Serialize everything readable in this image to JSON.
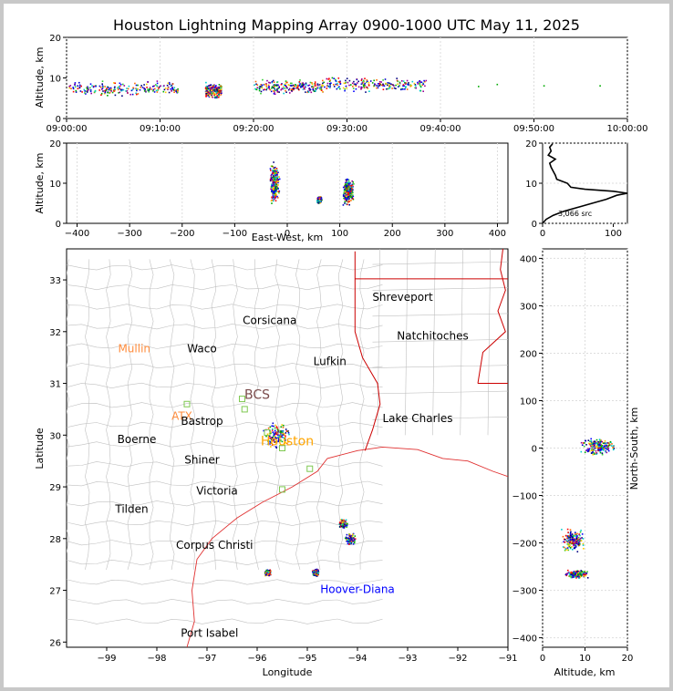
{
  "title": "Houston Lightning Mapping Array 0900-1000 UTC May 11, 2025",
  "chart_data": [
    {
      "type": "scatter",
      "ylabel": "Altitude, km",
      "xticks": [
        "09:00:00",
        "09:10:00",
        "09:20:00",
        "09:30:00",
        "09:40:00",
        "09:50:00",
        "10:00:00"
      ],
      "xlim": [
        "09:00:00",
        "10:00:00"
      ],
      "ylim": [
        0,
        20
      ],
      "yticks": [
        "0",
        "10",
        "20"
      ],
      "clusters": [
        {
          "t0": 0.2,
          "t1": 12.0,
          "alt": 7.5
        },
        {
          "t0": 14.8,
          "t1": 16.5,
          "alt": 7.0
        },
        {
          "t0": 20.0,
          "t1": 27.5,
          "alt": 8.0
        },
        {
          "t0": 27.5,
          "t1": 38.5,
          "alt": 8.5
        }
      ]
    },
    {
      "type": "scatter",
      "xlabel": "East-West, km",
      "ylabel": "Altitude, km",
      "xlim": [
        -420,
        420
      ],
      "ylim": [
        0,
        20
      ],
      "xticks": [
        "−400",
        "−300",
        "−200",
        "−100",
        "0",
        "100",
        "200",
        "300",
        "400"
      ],
      "yticks": [
        "0",
        "10",
        "20"
      ],
      "clusters": [
        {
          "x": -25,
          "alt": 10,
          "spread_x": 10,
          "spread_alt": 6
        },
        {
          "x": 60,
          "alt": 6,
          "spread_x": 5,
          "spread_alt": 1
        },
        {
          "x": 115,
          "alt": 8,
          "spread_x": 12,
          "spread_alt": 4
        }
      ]
    },
    {
      "type": "line",
      "annotation": "3,066 src",
      "xlim": [
        0,
        120
      ],
      "ylim": [
        0,
        20
      ],
      "xticks": [
        "0",
        "100"
      ],
      "yticks": [
        "0",
        "10",
        "20"
      ],
      "profile": [
        [
          0,
          0
        ],
        [
          5,
          1
        ],
        [
          15,
          2
        ],
        [
          30,
          3
        ],
        [
          50,
          4
        ],
        [
          70,
          5
        ],
        [
          90,
          6
        ],
        [
          105,
          7
        ],
        [
          120,
          7.5
        ],
        [
          100,
          8
        ],
        [
          60,
          8.5
        ],
        [
          40,
          9
        ],
        [
          35,
          10
        ],
        [
          20,
          11
        ],
        [
          18,
          12
        ],
        [
          15,
          13
        ],
        [
          12,
          14
        ],
        [
          10,
          15
        ],
        [
          18,
          16
        ],
        [
          8,
          17
        ],
        [
          12,
          18
        ],
        [
          10,
          19
        ],
        [
          14,
          19.8
        ]
      ]
    },
    {
      "type": "map",
      "xlabel": "Longitude",
      "ylabel": "Latitude",
      "xlim": [
        -99.8,
        -91
      ],
      "ylim": [
        25.9,
        33.6
      ],
      "xticks": [
        "−99",
        "−98",
        "−97",
        "−96",
        "−95",
        "−94",
        "−93",
        "−92",
        "−91"
      ],
      "yticks": [
        "26",
        "27",
        "28",
        "29",
        "30",
        "31",
        "32",
        "33"
      ],
      "cities": [
        {
          "name": "Shreveport",
          "lon": -93.1,
          "lat": 32.6,
          "color": "#000000"
        },
        {
          "name": "Corsicana",
          "lon": -95.75,
          "lat": 32.15,
          "color": "#000000"
        },
        {
          "name": "Natchitoches",
          "lon": -92.5,
          "lat": 31.85,
          "color": "#000000"
        },
        {
          "name": "Mullin",
          "lon": -98.45,
          "lat": 31.6,
          "color": "#ff8c3c"
        },
        {
          "name": "Waco",
          "lon": -97.1,
          "lat": 31.6,
          "color": "#000000"
        },
        {
          "name": "Lufkin",
          "lon": -94.55,
          "lat": 31.35,
          "color": "#000000"
        },
        {
          "name": "BCS",
          "lon": -96.0,
          "lat": 30.7,
          "color": "#7a4a4a"
        },
        {
          "name": "ATX",
          "lon": -97.5,
          "lat": 30.3,
          "color": "#ff8c3c"
        },
        {
          "name": "Bastrop",
          "lon": -97.1,
          "lat": 30.2,
          "color": "#000000"
        },
        {
          "name": "Lake Charles",
          "lon": -92.8,
          "lat": 30.25,
          "color": "#000000"
        },
        {
          "name": "Boerne",
          "lon": -98.4,
          "lat": 29.85,
          "color": "#000000"
        },
        {
          "name": "Houston",
          "lon": -95.4,
          "lat": 29.8,
          "color": "#ffa500"
        },
        {
          "name": "Shiner",
          "lon": -97.1,
          "lat": 29.45,
          "color": "#000000"
        },
        {
          "name": "Victoria",
          "lon": -96.8,
          "lat": 28.85,
          "color": "#000000"
        },
        {
          "name": "Tilden",
          "lon": -98.5,
          "lat": 28.5,
          "color": "#000000"
        },
        {
          "name": "Corpus Christi",
          "lon": -96.85,
          "lat": 27.8,
          "color": "#000000"
        },
        {
          "name": "Hoover-Diana",
          "lon": -94.0,
          "lat": 26.95,
          "color": "#0000ff"
        },
        {
          "name": "Port Isabel",
          "lon": -96.95,
          "lat": 26.1,
          "color": "#000000"
        }
      ],
      "clusters": [
        {
          "lon": -95.6,
          "lat": 30.0,
          "spread": 0.3
        },
        {
          "lon": -94.3,
          "lat": 28.3,
          "spread": 0.1
        },
        {
          "lon": -94.15,
          "lat": 28.0,
          "spread": 0.12
        },
        {
          "lon": -95.8,
          "lat": 27.35,
          "spread": 0.08
        },
        {
          "lon": -94.85,
          "lat": 27.35,
          "spread": 0.08
        }
      ]
    },
    {
      "type": "scatter",
      "xlabel": "Altitude, km",
      "ylabel": "North-South, km",
      "xlim": [
        0,
        20
      ],
      "ylim": [
        -420,
        420
      ],
      "xticks": [
        "0",
        "10",
        "20"
      ],
      "yticks": [
        "−400",
        "−300",
        "−200",
        "−100",
        "0",
        "100",
        "200",
        "300",
        "400"
      ],
      "clusters": [
        {
          "alt": 13,
          "y": 5,
          "spread_alt": 5,
          "spread_y": 20
        },
        {
          "alt": 7,
          "y": -195,
          "spread_alt": 3,
          "spread_y": 30
        },
        {
          "alt": 8,
          "y": -265,
          "spread_alt": 3,
          "spread_y": 10
        }
      ]
    }
  ]
}
